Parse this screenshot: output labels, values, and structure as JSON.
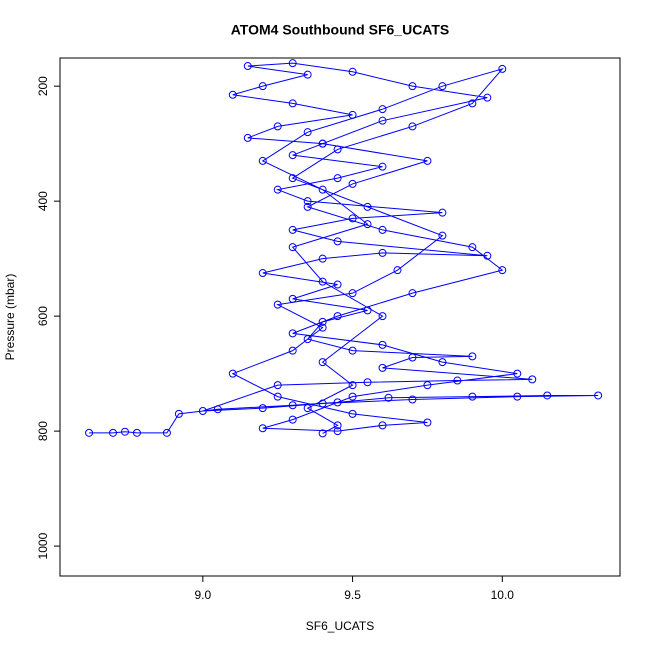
{
  "chart_data": {
    "type": "line",
    "title": "ATOM4 Southbound SF6_UCATS",
    "x_label": "SF6_UCATS",
    "y_label": "Pressure (mbar)",
    "x": [
      8.62,
      8.7,
      8.74,
      8.78,
      8.88,
      8.92,
      9.05,
      9.3,
      9.45,
      9.62,
      9.9,
      10.15,
      10.32,
      10.05,
      9.7,
      9.4,
      9.2,
      9.0,
      9.25,
      9.55,
      9.85,
      10.1,
      9.6,
      9.7,
      9.9,
      9.5,
      9.35,
      9.4,
      9.55,
      9.3,
      9.45,
      9.2,
      9.4,
      9.6,
      9.95,
      9.45,
      9.3,
      9.5,
      9.8,
      9.35,
      9.25,
      9.45,
      9.6,
      9.3,
      9.4,
      9.15,
      9.25,
      9.5,
      9.3,
      9.1,
      9.2,
      9.35,
      9.15,
      9.3,
      9.5,
      9.7,
      9.95,
      9.6,
      9.4,
      9.75,
      9.5,
      9.35,
      9.6,
      9.9,
      10.0,
      9.7,
      9.45,
      9.3,
      9.6,
      9.8,
      10.05,
      9.75,
      9.5,
      9.3,
      9.2,
      9.45,
      9.6,
      9.75,
      9.5,
      9.25,
      9.1,
      9.3,
      9.4,
      9.25,
      9.5,
      9.65,
      9.8,
      9.55,
      9.3,
      9.45,
      9.7,
      9.9,
      10.0,
      9.8,
      9.6,
      9.35,
      9.2,
      9.4,
      9.55,
      9.3,
      9.4,
      9.6,
      9.4,
      9.5,
      9.35,
      9.45,
      9.4
    ],
    "series": [
      {
        "color": "#0000ff",
        "values": [
          803,
          803,
          801,
          803,
          803,
          770,
          762,
          755,
          750,
          742,
          740,
          738,
          738,
          740,
          745,
          752,
          760,
          765,
          720,
          715,
          712,
          710,
          690,
          672,
          670,
          660,
          640,
          610,
          590,
          570,
          545,
          525,
          500,
          490,
          495,
          470,
          450,
          430,
          420,
          400,
          380,
          360,
          340,
          320,
          300,
          290,
          270,
          250,
          230,
          215,
          200,
          180,
          165,
          160,
          175,
          200,
          220,
          260,
          300,
          330,
          370,
          410,
          450,
          480,
          520,
          560,
          600,
          630,
          650,
          680,
          700,
          720,
          740,
          780,
          795,
          800,
          790,
          785,
          770,
          740,
          700,
          660,
          620,
          580,
          560,
          520,
          460,
          410,
          360,
          310,
          270,
          230,
          170,
          200,
          240,
          280,
          330,
          380,
          440,
          480,
          540,
          600,
          680,
          720,
          760,
          790,
          804
        ]
      }
    ],
    "xlim": [
      8.523,
      10.393
    ],
    "ylim": [
      1052,
      151
    ],
    "xticks": [
      {
        "value": 9.0,
        "label": "9.0"
      },
      9.5,
      {
        "value": 10.0,
        "label": "10.0"
      }
    ],
    "yticks": [
      200,
      400,
      600,
      800,
      1000
    ]
  }
}
